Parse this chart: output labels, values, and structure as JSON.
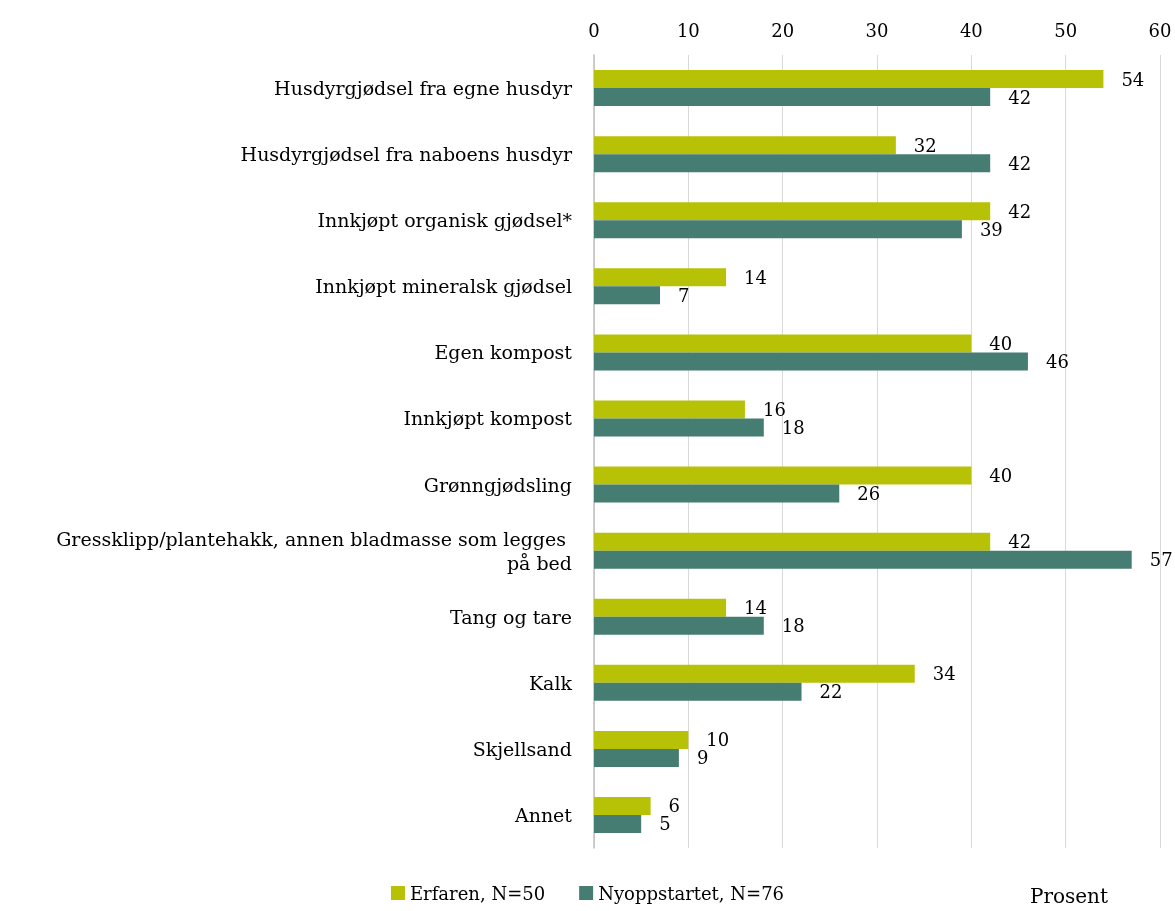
{
  "chart_data": {
    "type": "bar",
    "orientation": "horizontal",
    "xlabel": "Prosent",
    "categories": [
      "Husdyrgjødsel fra egne husdyr",
      "Husdyrgjødsel fra naboens husdyr",
      "Innkjøpt organisk gjødsel*",
      "Innkjøpt mineralsk gjødsel",
      "Egen kompost",
      "Innkjøpt kompost",
      "Grønngjødsling",
      "Gressklipp/plantehakk, annen bladmasse som legges på bed",
      "Tang og tare",
      "Kalk",
      "Skjellsand",
      "Annet"
    ],
    "series": [
      {
        "name": "Erfaren, N=50",
        "color": "#b7c106",
        "values": [
          54,
          32,
          42,
          14,
          40,
          16,
          40,
          42,
          14,
          34,
          10,
          6
        ]
      },
      {
        "name": "Nyoppstartet, N=76",
        "color": "#467d73",
        "values": [
          42,
          42,
          39,
          7,
          46,
          18,
          26,
          57,
          18,
          22,
          9,
          5
        ]
      }
    ],
    "xlim": [
      0,
      60
    ],
    "xticks": [
      0,
      10,
      20,
      30,
      40,
      50,
      60
    ],
    "grid": "x",
    "legend": "bottom",
    "data_labels": true
  }
}
